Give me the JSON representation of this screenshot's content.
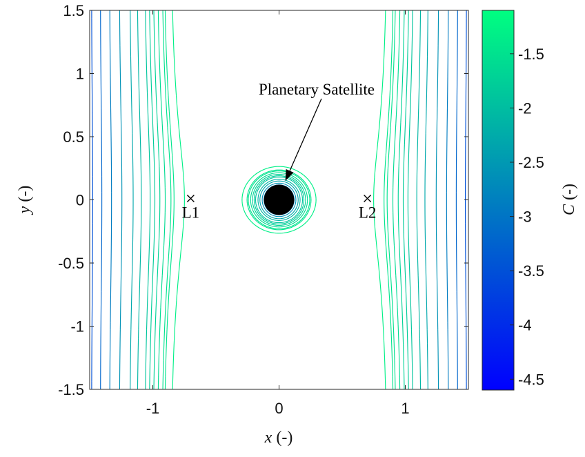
{
  "chart_data": {
    "type": "contour",
    "x_range": [
      -1.5,
      1.5
    ],
    "y_range": [
      -1.5,
      1.5
    ],
    "xlabel": {
      "symbol": "x",
      "unit": "(-)"
    },
    "ylabel": {
      "symbol": "y",
      "unit": "(-)"
    },
    "x_ticks": [
      -1,
      0,
      1
    ],
    "x_tick_labels": [
      "-1",
      "0",
      "1"
    ],
    "y_ticks": [
      -1.5,
      -1,
      -0.5,
      0,
      0.5,
      1,
      1.5
    ],
    "y_tick_labels": [
      "-1.5",
      "-1",
      "-0.5",
      "0",
      "0.5",
      "1",
      "1.5"
    ],
    "colorbar": {
      "label": {
        "symbol": "C",
        "unit": "(-)"
      },
      "range": [
        -4.6,
        -1.1
      ],
      "ticks": [
        -4.5,
        -4,
        -3.5,
        -3,
        -2.5,
        -2,
        -1.5
      ],
      "tick_labels": [
        "-4.5",
        "-4",
        "-3.5",
        "-3",
        "-2.5",
        "-2",
        "-1.5"
      ],
      "color_low": "#0000ff",
      "color_high": "#00ff80"
    },
    "contour_levels": [
      -4.5,
      -4.0,
      -3.5,
      -3.2,
      -2.9,
      -2.6,
      -2.3,
      -2.1,
      -1.9,
      -1.8,
      -1.7,
      -1.6,
      -1.5,
      -1.45,
      -1.3
    ],
    "points": [
      {
        "label": "L1",
        "x": -0.7,
        "y": 0,
        "marker": "x"
      },
      {
        "label": "L2",
        "x": 0.7,
        "y": 0,
        "marker": "x"
      }
    ],
    "body": {
      "x": 0,
      "y": 0,
      "radius": 0.12,
      "color": "#000000"
    },
    "annotation": {
      "text": "Planetary Satellite",
      "arrow_to": [
        0.05,
        0.15
      ]
    }
  }
}
